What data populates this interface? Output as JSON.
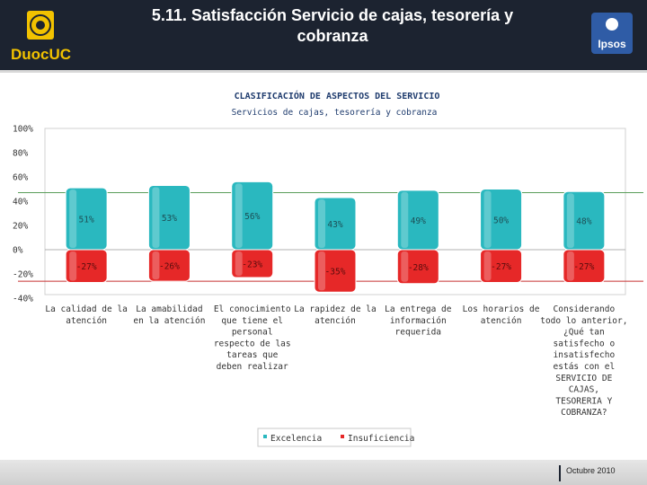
{
  "header": {
    "title_line1": "5.11. Satisfacción Servicio de cajas, tesorería y",
    "title_line2": "cobranza",
    "logo_left_text": "DuocUC",
    "logo_right_text": "Ipsos"
  },
  "footer": {
    "date": "Octubre 2010"
  },
  "colors": {
    "excelencia": "#2ab8bf",
    "insuficiencia": "#e62828",
    "header_bg": "#1c2330"
  },
  "chart_data": {
    "type": "bar",
    "title": "CLASIFICACIÓN DE ASPECTOS DEL SERVICIO",
    "subtitle": "Servicios de cajas, tesorería y cobranza",
    "ylim": [
      -40,
      100
    ],
    "yticks": [
      "100%",
      "80%",
      "60%",
      "40%",
      "20%",
      "0%",
      "-20%",
      "-40%"
    ],
    "ytick_values": [
      100,
      80,
      60,
      40,
      20,
      0,
      -20,
      -40
    ],
    "reference_lines": [
      {
        "value": 47,
        "color": "#5a9e5a"
      },
      {
        "value": -26,
        "color": "#c83232"
      }
    ],
    "categories": [
      [
        "La calidad de la",
        "atención"
      ],
      [
        "La amabilidad",
        "en la atención"
      ],
      [
        "El conocimiento",
        "que tiene el",
        "personal",
        "respecto de las",
        "tareas que",
        "deben realizar"
      ],
      [
        "La rapidez de la",
        "atención"
      ],
      [
        "La entrega de",
        "información",
        "requerida"
      ],
      [
        "Los horarios de",
        "atención"
      ],
      [
        "Considerando",
        "todo lo anterior,",
        "¿Qué tan",
        "satisfecho o",
        "insatisfecho",
        "estás con el",
        "SERVICIO DE",
        "CAJAS,",
        "TESORERIA Y",
        "COBRANZA?"
      ]
    ],
    "series": [
      {
        "name": "Excelencia",
        "values": [
          51,
          53,
          56,
          43,
          49,
          50,
          48
        ],
        "labels": [
          "51%",
          "53%",
          "56%",
          "43%",
          "49%",
          "50%",
          "48%"
        ]
      },
      {
        "name": "Insuficiencia",
        "values": [
          -27,
          -26,
          -23,
          -35,
          -28,
          -27,
          -27
        ],
        "labels": [
          "-27%",
          "-26%",
          "-23%",
          "-35%",
          "-28%",
          "-27%",
          "-27%"
        ]
      }
    ],
    "legend": [
      "Excelencia",
      "Insuficiencia"
    ],
    "legend_position": "bottom"
  }
}
